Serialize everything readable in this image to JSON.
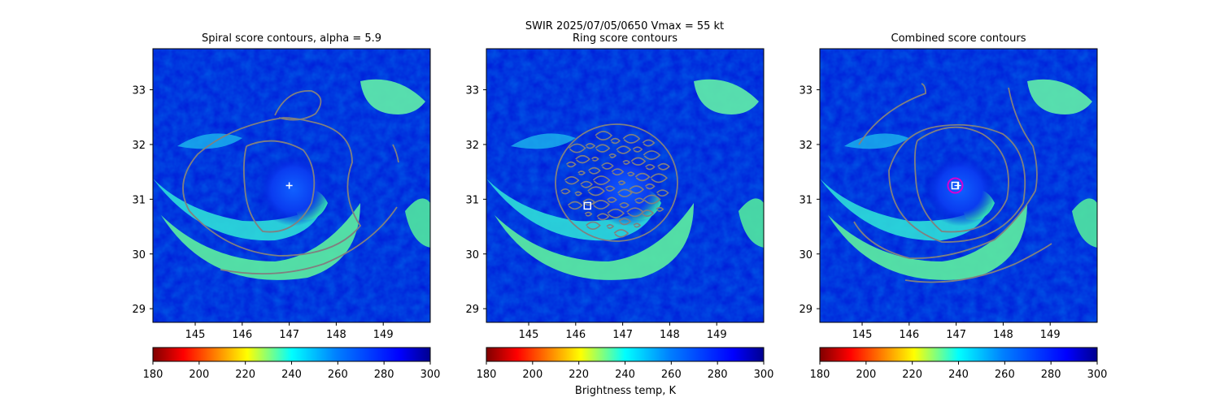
{
  "suptitle": {
    "line1": "SWIR  2025/07/05/0650    Vmax = 55 kt"
  },
  "colors": {
    "contour": "#808080",
    "center_marker": "#ffffff",
    "combined_circle": "#d400d4"
  },
  "colorbar": {
    "colormap": "jet_r",
    "min": 180,
    "max": 300,
    "ticks": [
      "180",
      "200",
      "220",
      "240",
      "260",
      "280",
      "300"
    ],
    "label": "Brightness temp, K"
  },
  "chart_data": [
    {
      "type": "heatmap",
      "title": "Spiral score contours, alpha =  5.9",
      "xlabel": "",
      "ylabel": "",
      "xlim": [
        144.1,
        150.0
      ],
      "ylim": [
        28.75,
        33.75
      ],
      "xticks": [
        "145",
        "146",
        "147",
        "148",
        "149"
      ],
      "yticks": [
        "29",
        "30",
        "31",
        "32",
        "33"
      ],
      "marker": {
        "type": "plus",
        "lon": 147.0,
        "lat": 31.25
      },
      "contour_style": "spiral"
    },
    {
      "type": "heatmap",
      "title": "Ring score contours",
      "xlabel": "",
      "ylabel": "",
      "xlim": [
        144.1,
        150.0
      ],
      "ylim": [
        28.75,
        33.75
      ],
      "xticks": [
        "145",
        "146",
        "147",
        "148",
        "149"
      ],
      "yticks": [
        "29",
        "30",
        "31",
        "32",
        "33"
      ],
      "marker": {
        "type": "square",
        "lon": 146.25,
        "lat": 30.88
      },
      "contour_style": "ring",
      "ring_region": {
        "center_lon": 146.95,
        "center_lat": 31.25,
        "radius_deg": 1.1
      }
    },
    {
      "type": "heatmap",
      "title": "Combined score contours",
      "xlabel": "",
      "ylabel": "",
      "xlim": [
        144.1,
        150.0
      ],
      "ylim": [
        28.75,
        33.75
      ],
      "xticks": [
        "145",
        "146",
        "147",
        "148",
        "149"
      ],
      "yticks": [
        "29",
        "30",
        "31",
        "32",
        "33"
      ],
      "marker": {
        "type": "square-plus-circle",
        "lon": 146.98,
        "lat": 31.25
      },
      "contour_style": "combined"
    }
  ]
}
